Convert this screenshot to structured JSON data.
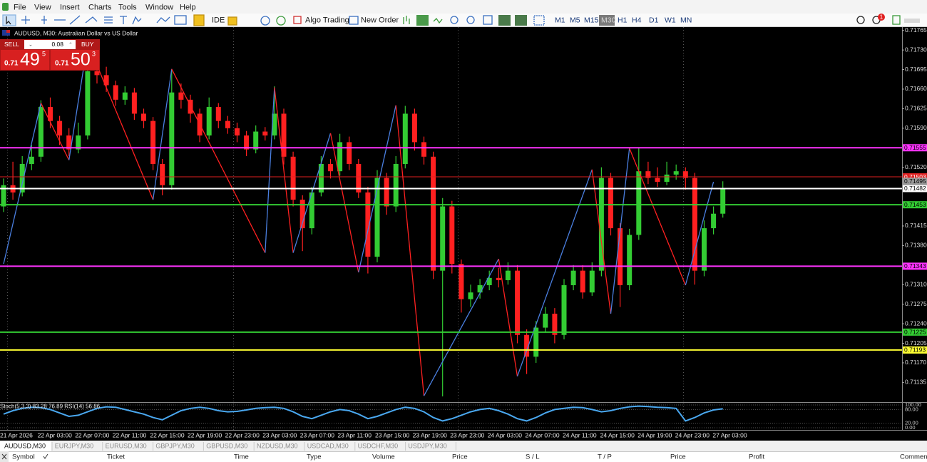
{
  "menu": [
    "File",
    "View",
    "Insert",
    "Charts",
    "Tools",
    "Window",
    "Help"
  ],
  "toolbar": {
    "ide": "IDE",
    "algo_trading": "Algo Trading",
    "new_order": "New Order",
    "timeframes": [
      "M1",
      "M5",
      "M15",
      "M30",
      "H1",
      "H4",
      "D1",
      "W1",
      "MN"
    ],
    "active_timeframe": "M30",
    "notifications": "1"
  },
  "chart_header": "AUDUSD, M30:  Australian Dollar vs US Dollar",
  "trade_panel": {
    "sell": "SELL",
    "volume": "0.08",
    "buy": "BUY",
    "bid": {
      "big": "0.71",
      "pips": "49",
      "point": "5"
    },
    "ask": {
      "big": "0.71",
      "pips": "50",
      "point": "3"
    }
  },
  "chart_data": {
    "type": "candlestick",
    "up_color": "#33cc33",
    "down_color": "#ff2020",
    "time_labels": [
      "21 Apr 2026",
      "22 Apr 03:00",
      "22 Apr 07:00",
      "22 Apr 11:00",
      "22 Apr 15:00",
      "22 Apr 19:00",
      "22 Apr 23:00",
      "23 Apr 03:00",
      "23 Apr 07:00",
      "23 Apr 11:00",
      "23 Apr 15:00",
      "23 Apr 19:00",
      "23 Apr 23:00",
      "24 Apr 03:00",
      "24 Apr 07:00",
      "24 Apr 11:00",
      "24 Apr 15:00",
      "24 Apr 19:00",
      "24 Apr 23:00",
      "27 Apr 03:00"
    ],
    "open": [
      0.7145,
      0.71488,
      0.71475,
      0.71526,
      0.71539,
      0.71628,
      0.71603,
      0.71577,
      0.71552,
      0.71577,
      0.71692,
      0.71685,
      0.71667,
      0.71641,
      0.71654,
      0.71616,
      0.71603,
      0.71526,
      0.71488,
      0.71654,
      0.71641,
      0.71616,
      0.71577,
      0.71628,
      0.71603,
      0.7159,
      0.71577,
      0.71552,
      0.71584,
      0.71577,
      0.71616,
      0.71539,
      0.71462,
      0.71411,
      0.71475,
      0.71526,
      0.71513,
      0.71565,
      0.71526,
      0.71475,
      0.7136,
      0.71501,
      0.7145,
      0.71526,
      0.71616,
      0.71565,
      0.71539,
      0.71335,
      0.7145,
      0.71347,
      0.71284,
      0.71296,
      0.71309,
      0.71322,
      0.71318,
      0.71335,
      0.7122,
      0.71181,
      0.71233,
      0.71258,
      0.7122,
      0.71309,
      0.71335,
      0.71296,
      0.71335,
      0.71501,
      0.71411,
      0.71309,
      0.71399,
      0.71513,
      0.71501,
      0.71494,
      0.71507,
      0.71513,
      0.71501,
      0.71335,
      0.71411,
      0.71437
    ],
    "high": [
      0.715,
      0.7153,
      0.7154,
      0.7156,
      0.7164,
      0.71645,
      0.71612,
      0.7159,
      0.716,
      0.7171,
      0.7172,
      0.717,
      0.71675,
      0.71665,
      0.71662,
      0.71625,
      0.7161,
      0.71535,
      0.71695,
      0.7167,
      0.7165,
      0.71625,
      0.71645,
      0.71635,
      0.71612,
      0.716,
      0.71585,
      0.71595,
      0.71592,
      0.71665,
      0.71625,
      0.71548,
      0.7147,
      0.71485,
      0.7154,
      0.71535,
      0.7158,
      0.71575,
      0.71535,
      0.71485,
      0.71515,
      0.7151,
      0.7154,
      0.7163,
      0.71625,
      0.71575,
      0.71548,
      0.71465,
      0.7146,
      0.71355,
      0.7131,
      0.7132,
      0.71335,
      0.7134,
      0.7135,
      0.71345,
      0.7123,
      0.71245,
      0.7127,
      0.71268,
      0.7132,
      0.71345,
      0.71345,
      0.7135,
      0.7152,
      0.7151,
      0.7142,
      0.7141,
      0.71555,
      0.7153,
      0.7152,
      0.7153,
      0.71525,
      0.7152,
      0.7151,
      0.71425,
      0.7145,
      0.71495
    ],
    "low": [
      0.7144,
      0.71462,
      0.71468,
      0.71515,
      0.7153,
      0.7159,
      0.7156,
      0.7154,
      0.71545,
      0.7157,
      0.7167,
      0.71655,
      0.7163,
      0.71632,
      0.71605,
      0.7159,
      0.71515,
      0.7147,
      0.7148,
      0.71625,
      0.716,
      0.71565,
      0.7157,
      0.7159,
      0.7158,
      0.71565,
      0.7154,
      0.71545,
      0.71568,
      0.7157,
      0.71525,
      0.7145,
      0.7137,
      0.714,
      0.71468,
      0.715,
      0.71505,
      0.71515,
      0.71465,
      0.7133,
      0.7135,
      0.71435,
      0.7144,
      0.71518,
      0.7155,
      0.71525,
      0.7132,
      0.7111,
      0.7133,
      0.7126,
      0.7127,
      0.71285,
      0.713,
      0.71305,
      0.7131,
      0.71205,
      0.7115,
      0.7117,
      0.71225,
      0.71205,
      0.71212,
      0.713,
      0.71285,
      0.7129,
      0.71325,
      0.71398,
      0.7127,
      0.713,
      0.7139,
      0.7149,
      0.71485,
      0.71488,
      0.71498,
      0.7148,
      0.7131,
      0.71325,
      0.714,
      0.7143
    ],
    "close": [
      0.71488,
      0.71475,
      0.71526,
      0.71539,
      0.71628,
      0.71603,
      0.71577,
      0.71552,
      0.71577,
      0.71692,
      0.71685,
      0.71667,
      0.71641,
      0.71654,
      0.71616,
      0.71603,
      0.71526,
      0.71488,
      0.71654,
      0.71641,
      0.71616,
      0.71577,
      0.71628,
      0.71603,
      0.7159,
      0.71577,
      0.71552,
      0.71584,
      0.71577,
      0.71616,
      0.71539,
      0.71462,
      0.71411,
      0.71475,
      0.71526,
      0.71513,
      0.71565,
      0.71526,
      0.71475,
      0.7136,
      0.71501,
      0.7145,
      0.71526,
      0.71616,
      0.71565,
      0.71539,
      0.71335,
      0.7145,
      0.71347,
      0.71284,
      0.71296,
      0.71309,
      0.71322,
      0.71318,
      0.71335,
      0.7122,
      0.71181,
      0.71233,
      0.71258,
      0.7122,
      0.71309,
      0.71335,
      0.71296,
      0.71335,
      0.71501,
      0.71411,
      0.71309,
      0.71399,
      0.71513,
      0.71501,
      0.71494,
      0.71507,
      0.71513,
      0.71501,
      0.71335,
      0.71411,
      0.71437,
      0.71482
    ],
    "ylim": [
      0.71101,
      0.71771
    ],
    "yticks": [
      0.71765,
      {
        "value": 0.7173,
        "label": "0.71730"
      },
      0.71695,
      {
        "value": 0.7166,
        "label": "0.71660"
      },
      0.71625,
      {
        "value": 0.7159,
        "label": "0.71590"
      },
      {
        "value": 0.7152,
        "label": "0.71520"
      },
      0.71415,
      {
        "value": 0.7138,
        "label": "0.71380"
      },
      {
        "value": 0.7131,
        "label": "0.71310"
      },
      0.71275,
      {
        "value": 0.7124,
        "label": "0.71240"
      },
      0.71205,
      {
        "value": 0.7117,
        "label": "0.71170"
      },
      0.71135
    ],
    "levels": [
      {
        "value": 0.71555,
        "color": "#ff33ff",
        "width": 2,
        "text_color": "#000000"
      },
      {
        "value": 0.71503,
        "color": "#e02020",
        "width": 1,
        "text_color": "#ffffff"
      },
      {
        "value": 0.71495,
        "color": "#9a9a9a",
        "width": 0,
        "text_color": "#000000"
      },
      {
        "value": 0.71482,
        "color": "#ffffff",
        "width": 2,
        "text_color": "#000000"
      },
      {
        "value": 0.71453,
        "color": "#33cc33",
        "width": 2,
        "text_color": "#000000"
      },
      {
        "value": 0.71343,
        "color": "#ff33ff",
        "width": 2,
        "text_color": "#000000"
      },
      {
        "value": 0.71225,
        "color": "#33cc33",
        "width": 2,
        "text_color": "#000000"
      },
      {
        "value": 0.71193,
        "color": "#ffff33",
        "width": 2,
        "text_color": "#000000"
      }
    ],
    "zigzag": {
      "up_color": "#4a7fe0",
      "down_color": "#ff2020",
      "x": [
        0,
        4,
        7,
        9,
        16,
        18,
        28,
        29,
        31,
        35,
        38,
        42,
        45,
        53,
        55,
        63,
        65,
        67,
        73,
        76
      ],
      "values": [
        0.71347,
        0.71635,
        0.71533,
        0.71743,
        0.71462,
        0.71696,
        0.71367,
        0.71663,
        0.71367,
        0.71581,
        0.71332,
        0.71631,
        0.71111,
        0.71356,
        0.71146,
        0.71516,
        0.71258,
        0.71554,
        0.71309,
        0.71494
      ]
    },
    "indicator": {
      "label": "Stoch(5,3,3) 83.28 76.89 RSI(14) 56.86",
      "color": "#4aa8f0",
      "values": [
        60,
        75,
        85,
        90,
        88,
        80,
        65,
        50,
        55,
        70,
        85,
        92,
        90,
        80,
        70,
        60,
        45,
        35,
        55,
        75,
        85,
        90,
        85,
        75,
        70,
        72,
        78,
        85,
        88,
        90,
        85,
        70,
        50,
        40,
        55,
        70,
        80,
        75,
        60,
        40,
        50,
        65,
        80,
        90,
        85,
        70,
        45,
        30,
        40,
        55,
        70,
        80,
        85,
        75,
        60,
        40,
        30,
        45,
        65,
        80,
        85,
        90,
        88,
        80,
        70,
        75,
        85,
        92,
        95,
        93,
        90,
        88,
        85,
        30,
        45,
        65,
        78,
        83.28
      ],
      "ylim": [
        0,
        100
      ],
      "yticks": [
        {
          "value": 100,
          "label": "100.00"
        },
        {
          "value": 80,
          "label": "80.00"
        },
        {
          "value": 20,
          "label": "20.00"
        },
        {
          "value": 0,
          "label": "0.00"
        }
      ]
    }
  },
  "tabs": [
    "AUDUSD,M30",
    "EURJPY,M30",
    "EURUSD,M30",
    "GBPJPY,M30",
    "GBPUSD,M30",
    "NZDUSD,M30",
    "USDCAD,M30",
    "USDCHF,M30",
    "USDJPY,M30"
  ],
  "table_headers": [
    "Symbol",
    "Ticket",
    "Time",
    "Type",
    "Volume",
    "Price",
    "S / L",
    "T / P",
    "Price",
    "Profit",
    "Comment"
  ]
}
